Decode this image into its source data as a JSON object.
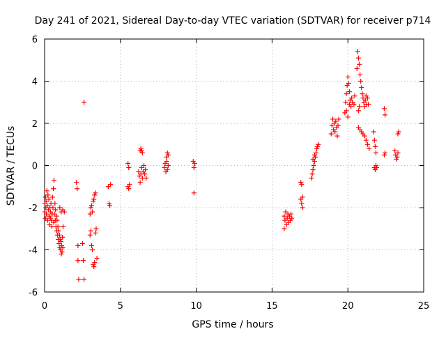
{
  "chart_data": {
    "type": "scatter",
    "title": "Day 241 of 2021, Sidereal Day-to-day VTEC variation (SDTVAR) for receiver p714",
    "xlabel": "GPS time / hours",
    "ylabel": "SDTVAR / TECUs",
    "xlim": [
      0,
      25
    ],
    "ylim": [
      -6,
      6
    ],
    "xticks": [
      0,
      5,
      10,
      15,
      20,
      25
    ],
    "yticks": [
      -6,
      -4,
      -2,
      0,
      2,
      4,
      6
    ],
    "xtick_labels": [
      "0",
      "5",
      "10",
      "15",
      "20",
      "25"
    ],
    "ytick_labels": [
      "-6",
      "-4",
      "-2",
      "0",
      "2",
      "4",
      "6"
    ],
    "grid": true,
    "marker": "plus",
    "color": "#ff0000",
    "series": [
      {
        "name": "SDTVAR",
        "points": [
          [
            0.0,
            -1.8
          ],
          [
            0.02,
            -2.2
          ],
          [
            0.05,
            -2.5
          ],
          [
            0.05,
            -1.5
          ],
          [
            0.08,
            -2.0
          ],
          [
            0.1,
            -1.7
          ],
          [
            0.12,
            -2.3
          ],
          [
            0.15,
            -1.2
          ],
          [
            0.18,
            -1.9
          ],
          [
            0.2,
            -2.6
          ],
          [
            0.22,
            -1.4
          ],
          [
            0.25,
            -2.1
          ],
          [
            0.28,
            -1.6
          ],
          [
            0.3,
            -2.4
          ],
          [
            0.32,
            -2.8
          ],
          [
            0.35,
            -2.0
          ],
          [
            0.38,
            -2.5
          ],
          [
            0.4,
            -2.2
          ],
          [
            0.42,
            -1.8
          ],
          [
            0.45,
            -2.6
          ],
          [
            0.48,
            -2.9
          ],
          [
            0.5,
            -2.3
          ],
          [
            0.52,
            -1.5
          ],
          [
            0.55,
            -2.0
          ],
          [
            0.58,
            -1.1
          ],
          [
            0.6,
            -2.7
          ],
          [
            0.62,
            -0.7
          ],
          [
            0.65,
            -2.3
          ],
          [
            0.68,
            -1.8
          ],
          [
            0.7,
            -2.6
          ],
          [
            0.72,
            -2.1
          ],
          [
            0.75,
            -2.9
          ],
          [
            0.78,
            -2.4
          ],
          [
            0.8,
            -3.1
          ],
          [
            0.82,
            -2.6
          ],
          [
            0.85,
            -3.3
          ],
          [
            0.88,
            -2.9
          ],
          [
            0.9,
            -3.5
          ],
          [
            0.92,
            -3.1
          ],
          [
            0.95,
            -3.7
          ],
          [
            0.98,
            -3.3
          ],
          [
            1.0,
            -3.9
          ],
          [
            1.02,
            -3.5
          ],
          [
            1.05,
            -4.0
          ],
          [
            1.08,
            -3.6
          ],
          [
            1.1,
            -4.2
          ],
          [
            1.12,
            -3.8
          ],
          [
            1.15,
            -4.1
          ],
          [
            1.18,
            -3.4
          ],
          [
            1.2,
            -3.9
          ],
          [
            1.22,
            -2.9
          ],
          [
            1.0,
            -2.0
          ],
          [
            1.1,
            -2.2
          ],
          [
            1.2,
            -2.1
          ],
          [
            1.3,
            -2.2
          ],
          [
            2.1,
            -0.8
          ],
          [
            2.15,
            -1.1
          ],
          [
            2.2,
            -3.8
          ],
          [
            2.2,
            -4.5
          ],
          [
            2.25,
            -5.4
          ],
          [
            2.5,
            -3.7
          ],
          [
            2.55,
            -4.5
          ],
          [
            2.6,
            -5.4
          ],
          [
            2.6,
            3.0
          ],
          [
            3.0,
            -2.3
          ],
          [
            3.05,
            -2.0
          ],
          [
            3.1,
            -1.9
          ],
          [
            3.15,
            -2.2
          ],
          [
            3.2,
            -1.7
          ],
          [
            3.25,
            -1.6
          ],
          [
            3.3,
            -1.4
          ],
          [
            3.35,
            -1.3
          ],
          [
            3.0,
            -3.3
          ],
          [
            3.05,
            -3.1
          ],
          [
            3.1,
            -3.8
          ],
          [
            3.15,
            -4.0
          ],
          [
            3.2,
            -4.7
          ],
          [
            3.25,
            -4.8
          ],
          [
            3.3,
            -4.6
          ],
          [
            3.35,
            -3.2
          ],
          [
            3.4,
            -3.0
          ],
          [
            3.45,
            -4.4
          ],
          [
            4.2,
            -1.0
          ],
          [
            4.25,
            -1.8
          ],
          [
            4.3,
            -1.9
          ],
          [
            4.35,
            -0.9
          ],
          [
            5.5,
            0.1
          ],
          [
            5.55,
            -0.1
          ],
          [
            5.5,
            -1.0
          ],
          [
            5.55,
            -1.1
          ],
          [
            5.6,
            -0.9
          ],
          [
            6.2,
            -0.3
          ],
          [
            6.25,
            -0.5
          ],
          [
            6.3,
            -0.8
          ],
          [
            6.35,
            -0.4
          ],
          [
            6.4,
            -0.1
          ],
          [
            6.45,
            -0.6
          ],
          [
            6.5,
            -0.3
          ],
          [
            6.55,
            0.0
          ],
          [
            6.6,
            -0.4
          ],
          [
            6.65,
            -0.2
          ],
          [
            6.7,
            -0.6
          ],
          [
            6.3,
            0.7
          ],
          [
            6.35,
            0.8
          ],
          [
            6.4,
            0.7
          ],
          [
            6.45,
            0.6
          ],
          [
            7.9,
            -0.1
          ],
          [
            7.95,
            0.1
          ],
          [
            8.0,
            -0.3
          ],
          [
            8.05,
            0.2
          ],
          [
            8.1,
            -0.2
          ],
          [
            8.15,
            0.0
          ],
          [
            8.1,
            0.6
          ],
          [
            8.15,
            0.5
          ],
          [
            8.05,
            0.4
          ],
          [
            9.8,
            0.2
          ],
          [
            9.85,
            -0.1
          ],
          [
            9.9,
            0.1
          ],
          [
            9.85,
            -1.3
          ],
          [
            15.8,
            -2.4
          ],
          [
            15.85,
            -2.6
          ],
          [
            15.9,
            -2.2
          ],
          [
            15.95,
            -2.8
          ],
          [
            16.0,
            -2.5
          ],
          [
            16.05,
            -2.3
          ],
          [
            16.1,
            -2.7
          ],
          [
            16.15,
            -2.4
          ],
          [
            16.2,
            -2.6
          ],
          [
            16.25,
            -2.3
          ],
          [
            16.3,
            -2.5
          ],
          [
            15.8,
            -3.0
          ],
          [
            16.9,
            -0.8
          ],
          [
            16.95,
            -0.9
          ],
          [
            17.0,
            -1.5
          ],
          [
            16.95,
            -1.8
          ],
          [
            17.0,
            -2.0
          ],
          [
            16.9,
            -1.6
          ],
          [
            17.6,
            -0.6
          ],
          [
            17.65,
            -0.4
          ],
          [
            17.7,
            -0.2
          ],
          [
            17.75,
            0.0
          ],
          [
            17.8,
            0.2
          ],
          [
            17.85,
            0.4
          ],
          [
            17.9,
            0.6
          ],
          [
            17.95,
            0.8
          ],
          [
            18.0,
            0.9
          ],
          [
            18.05,
            1.0
          ],
          [
            17.7,
            0.3
          ],
          [
            17.8,
            0.5
          ],
          [
            18.9,
            1.5
          ],
          [
            18.95,
            1.9
          ],
          [
            19.0,
            2.2
          ],
          [
            19.05,
            1.7
          ],
          [
            19.1,
            2.0
          ],
          [
            19.15,
            1.6
          ],
          [
            19.2,
            2.1
          ],
          [
            19.25,
            1.8
          ],
          [
            19.3,
            1.4
          ],
          [
            19.35,
            1.9
          ],
          [
            19.4,
            2.2
          ],
          [
            19.8,
            2.5
          ],
          [
            19.85,
            3.0
          ],
          [
            19.9,
            3.4
          ],
          [
            19.95,
            3.8
          ],
          [
            20.0,
            4.2
          ],
          [
            20.05,
            3.9
          ],
          [
            20.1,
            3.5
          ],
          [
            20.15,
            3.1
          ],
          [
            20.2,
            2.8
          ],
          [
            20.25,
            3.2
          ],
          [
            19.9,
            2.6
          ],
          [
            20.0,
            2.3
          ],
          [
            20.1,
            2.9
          ],
          [
            20.3,
            3.0
          ],
          [
            20.4,
            2.9
          ],
          [
            20.45,
            3.3
          ],
          [
            20.6,
            4.6
          ],
          [
            20.65,
            5.4
          ],
          [
            20.7,
            5.1
          ],
          [
            20.75,
            4.8
          ],
          [
            20.8,
            4.3
          ],
          [
            20.85,
            4.0
          ],
          [
            20.9,
            3.7
          ],
          [
            20.95,
            3.4
          ],
          [
            21.0,
            3.2
          ],
          [
            21.05,
            3.0
          ],
          [
            21.1,
            2.8
          ],
          [
            21.15,
            3.1
          ],
          [
            21.2,
            3.3
          ],
          [
            21.25,
            2.9
          ],
          [
            21.3,
            3.2
          ],
          [
            21.35,
            2.9
          ],
          [
            20.7,
            2.6
          ],
          [
            20.75,
            2.8
          ],
          [
            20.7,
            1.8
          ],
          [
            20.8,
            1.7
          ],
          [
            20.9,
            1.6
          ],
          [
            21.0,
            1.5
          ],
          [
            21.1,
            1.4
          ],
          [
            21.2,
            1.2
          ],
          [
            21.3,
            1.0
          ],
          [
            21.4,
            0.8
          ],
          [
            21.7,
            1.6
          ],
          [
            21.75,
            1.2
          ],
          [
            21.8,
            0.9
          ],
          [
            21.85,
            0.6
          ],
          [
            21.75,
            -0.1
          ],
          [
            21.8,
            -0.2
          ],
          [
            21.85,
            0.0
          ],
          [
            21.9,
            -0.1
          ],
          [
            22.4,
            2.7
          ],
          [
            22.45,
            2.4
          ],
          [
            22.4,
            0.5
          ],
          [
            22.45,
            0.6
          ],
          [
            23.1,
            0.7
          ],
          [
            23.15,
            0.5
          ],
          [
            23.2,
            0.3
          ],
          [
            23.25,
            0.4
          ],
          [
            23.3,
            0.6
          ],
          [
            23.3,
            1.5
          ],
          [
            23.35,
            1.6
          ]
        ]
      }
    ]
  }
}
